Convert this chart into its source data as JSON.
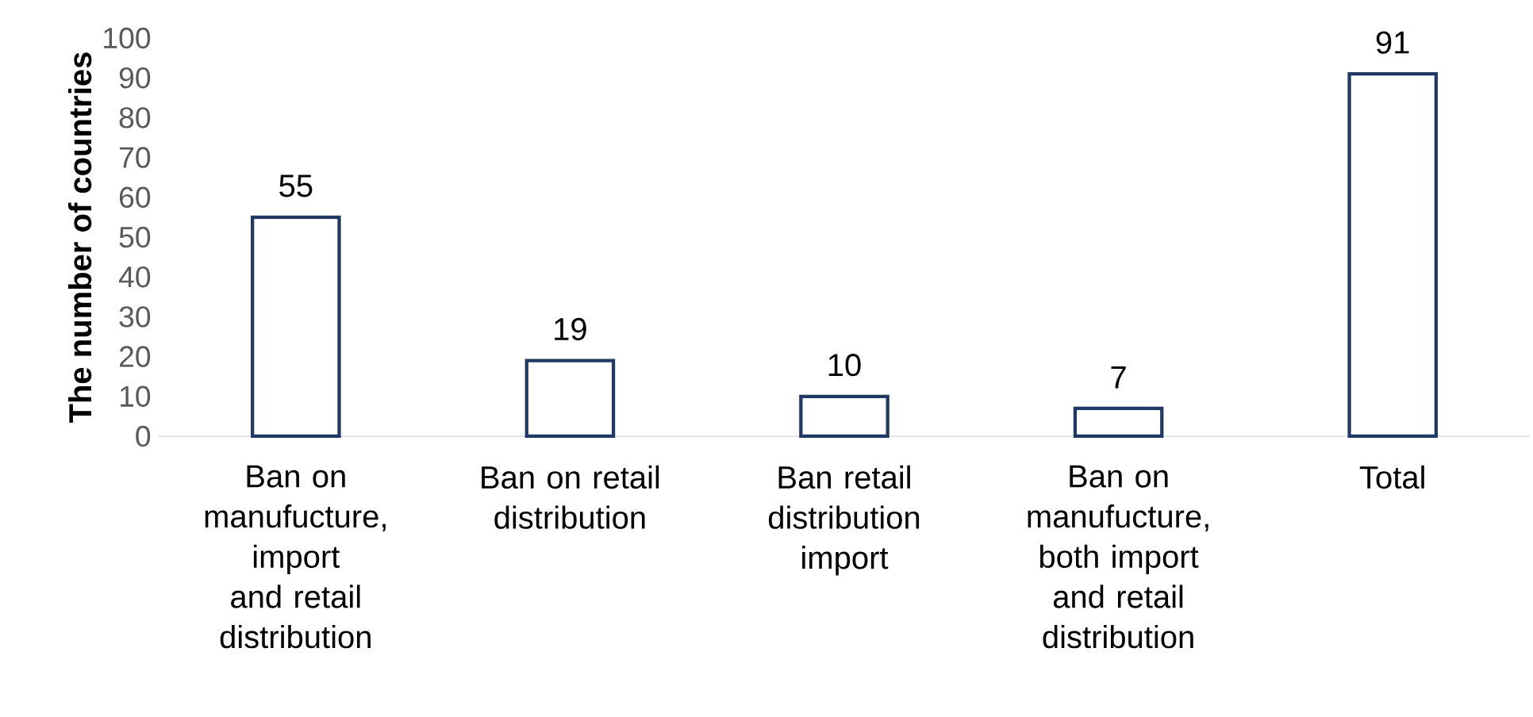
{
  "chart_data": {
    "type": "bar",
    "ylabel": "The number of countries",
    "categories": [
      "Ban on manufucture, import and retail distribution",
      "Ban on retail distribution",
      "Ban retail distribution import",
      "Ban on manufucture, both import and retail distribution",
      "Total"
    ],
    "values": [
      55,
      19,
      10,
      7,
      91
    ],
    "color": "#203864",
    "ylim": [
      0,
      100
    ],
    "yticks": [
      0,
      10,
      20,
      30,
      40,
      50,
      60,
      70,
      80,
      90,
      100
    ],
    "grid": false,
    "data_labels": true
  }
}
